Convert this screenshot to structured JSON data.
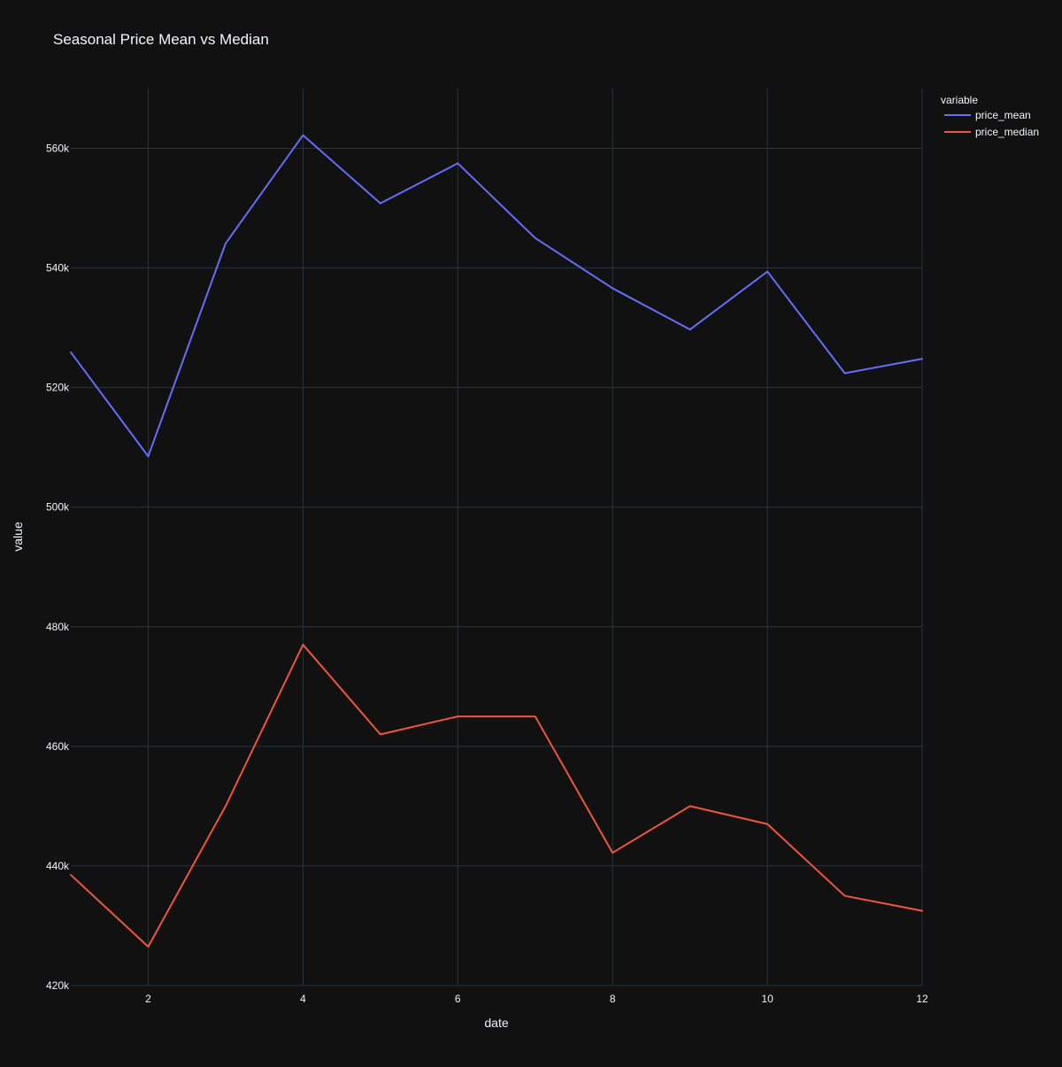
{
  "chart_data": {
    "type": "line",
    "title": "Seasonal Price Mean vs Median",
    "xlabel": "date",
    "ylabel": "value",
    "xlim": [
      1,
      12
    ],
    "ylim": [
      420000,
      570000
    ],
    "x_ticks": [
      2,
      4,
      6,
      8,
      10,
      12
    ],
    "x_tick_labels": [
      "2",
      "4",
      "6",
      "8",
      "10",
      "12"
    ],
    "y_ticks": [
      420000,
      440000,
      460000,
      480000,
      500000,
      520000,
      540000,
      560000
    ],
    "y_tick_labels": [
      "420k",
      "440k",
      "460k",
      "480k",
      "500k",
      "520k",
      "540k",
      "560k"
    ],
    "grid": true,
    "legend_title": "variable",
    "legend_position": "top-right",
    "x": [
      1,
      2,
      3,
      4,
      5,
      6,
      7,
      8,
      9,
      10,
      11,
      12
    ],
    "series": [
      {
        "name": "price_mean",
        "color": "#636efa",
        "values": [
          525900,
          508500,
          544100,
          562200,
          550800,
          557500,
          545000,
          536600,
          529700,
          539400,
          522400,
          524800
        ]
      },
      {
        "name": "price_median",
        "color": "#ef553b",
        "values": [
          438500,
          426500,
          450000,
          477000,
          462000,
          465000,
          465000,
          442200,
          450000,
          447000,
          435000,
          432500
        ]
      }
    ]
  },
  "colors": {
    "background": "#111111",
    "grid": "#283442",
    "text": "#f2f5fa"
  }
}
